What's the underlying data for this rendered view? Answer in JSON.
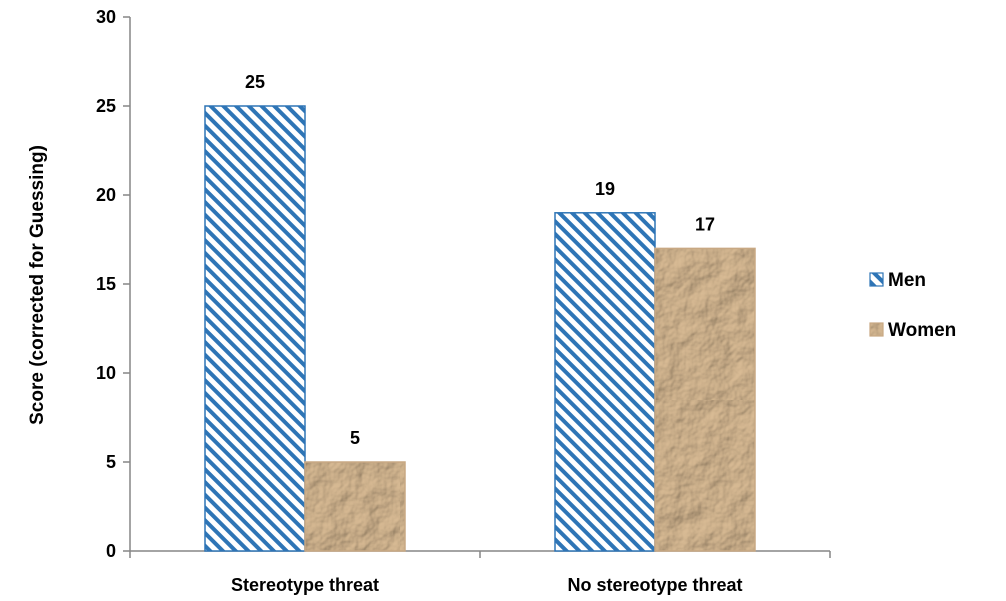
{
  "chart_data": {
    "type": "bar",
    "categories": [
      "Stereotype threat",
      "No stereotype threat"
    ],
    "series": [
      {
        "name": "Men",
        "values": [
          25,
          19
        ],
        "fill": "stripes",
        "color": "#2E75B6"
      },
      {
        "name": "Women",
        "values": [
          5,
          17
        ],
        "fill": "paper-texture",
        "color": "#C8A883"
      }
    ],
    "ylabel": "Score (corrected for Guessing)",
    "xlabel": "",
    "ylim": [
      0,
      30
    ],
    "yticks": [
      0,
      5,
      10,
      15,
      20,
      25,
      30
    ],
    "grid": false,
    "legend_position": "right"
  }
}
